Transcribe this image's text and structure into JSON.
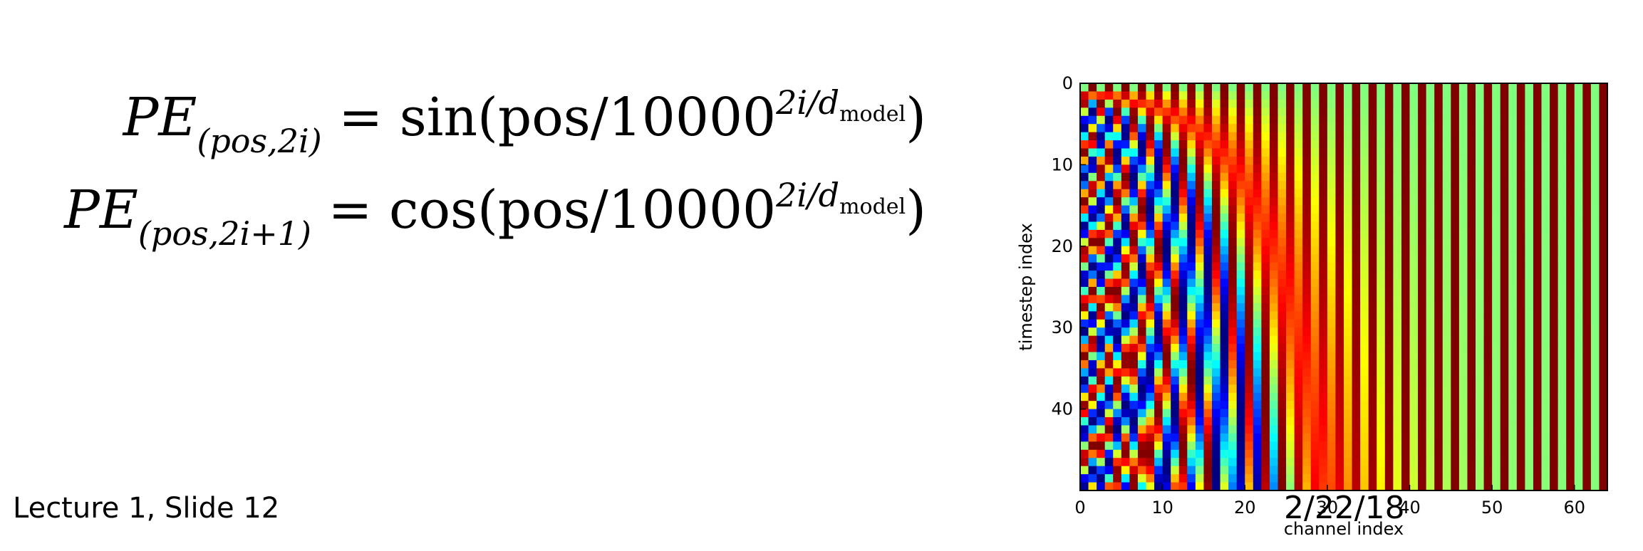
{
  "equations": {
    "eq1": {
      "lhs": "PE",
      "lhs_sub": "(pos,2i)",
      "rhs_func": "= sin(pos/10000",
      "exp": "2i/d",
      "exp_sub": "model",
      "close": ")"
    },
    "eq2": {
      "lhs": "PE",
      "lhs_sub": "(pos,2i+1)",
      "rhs_func": "= cos(pos/10000",
      "exp": "2i/d",
      "exp_sub": "model",
      "close": ")"
    }
  },
  "footer": {
    "left": "Lecture 1, Slide 12",
    "date": "2/22/18"
  },
  "chart_data": {
    "type": "heatmap",
    "title": "",
    "xlabel": "channel index",
    "ylabel": "timestep index",
    "x_range": [
      0,
      64
    ],
    "y_range": [
      0,
      50
    ],
    "y_inverted": true,
    "rows": 50,
    "cols": 64,
    "colormap": "jet",
    "value_range": [
      -1,
      1
    ],
    "x_ticks": [
      "0",
      "10",
      "20",
      "30",
      "40",
      "50",
      "60"
    ],
    "y_ticks": [
      "0",
      "10",
      "20",
      "30",
      "40"
    ]
  },
  "colors": {
    "background": "#ffffff",
    "text": "#000000"
  }
}
